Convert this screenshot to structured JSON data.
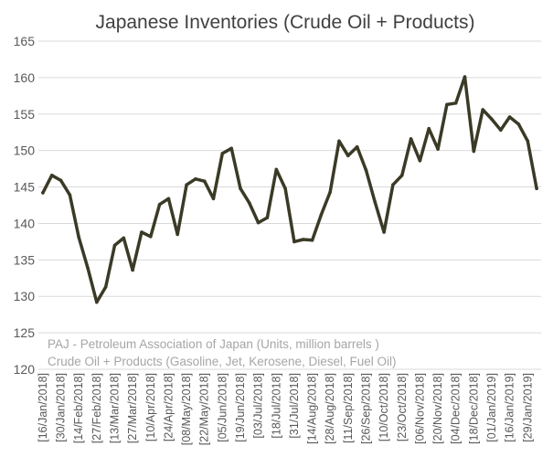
{
  "chart_data": {
    "type": "line",
    "title": "Japanese Inventories (Crude Oil + Products)",
    "annotations": [
      "PAJ - Petroleum Association of Japan  (Units, million barrels )",
      "Crude Oil + Products (Gasoline, Jet, Kerosene, Diesel, Fuel Oil)"
    ],
    "ylim": [
      120,
      165
    ],
    "y_ticks": [
      120,
      125,
      130,
      135,
      140,
      145,
      150,
      155,
      160,
      165
    ],
    "grid": true,
    "x_tick_labels": [
      "[16/Jan/2018]",
      "[30/Jan/2018]",
      "[14/Feb/2018]",
      "[27/Feb/2018]",
      "[13/Mar/2018]",
      "[27/Mar/2018]",
      "[10/Apr/2018]",
      "[24/Apr/2018]",
      "[08/May/2018]",
      "[22/May/2018]",
      "[05/Jun/2018]",
      "[19/Jun/2018]",
      "[03/Jul/2018]",
      "[18/Jul/2018]",
      "[31/Jul/2018]",
      "[14/Aug/2018]",
      "[28/Aug/2018]",
      "[11/Sep/2018]",
      "[26/Sep/2018]",
      "[10/Oct/2018]",
      "[23/Oct/2018]",
      "[06/Nov/2018]",
      "[20/Nov/2018]",
      "[04/Dec/2018]",
      "[18/Dec/2018]",
      "[01/Jan/2019]",
      "[16/Jan/2019]",
      "[29/Jan/2019]"
    ],
    "series": [
      {
        "color": "#3b3a26",
        "values": [
          144.2,
          146.6,
          145.9,
          143.9,
          138.1,
          133.9,
          129.2,
          131.3,
          137.0,
          138.0,
          133.6,
          138.8,
          138.2,
          142.6,
          143.4,
          138.5,
          145.3,
          146.1,
          145.8,
          143.4,
          149.6,
          150.3,
          144.8,
          142.8,
          140.1,
          140.8,
          147.4,
          144.8,
          137.5,
          137.8,
          137.7,
          141.2,
          144.3,
          151.3,
          149.3,
          150.5,
          147.3,
          142.9,
          138.8,
          145.3,
          146.6,
          151.6,
          148.6,
          153.0,
          150.2,
          156.3,
          156.5,
          160.1,
          149.9,
          155.6,
          154.3,
          152.8,
          154.6,
          153.6,
          151.3,
          144.8
        ]
      }
    ]
  }
}
